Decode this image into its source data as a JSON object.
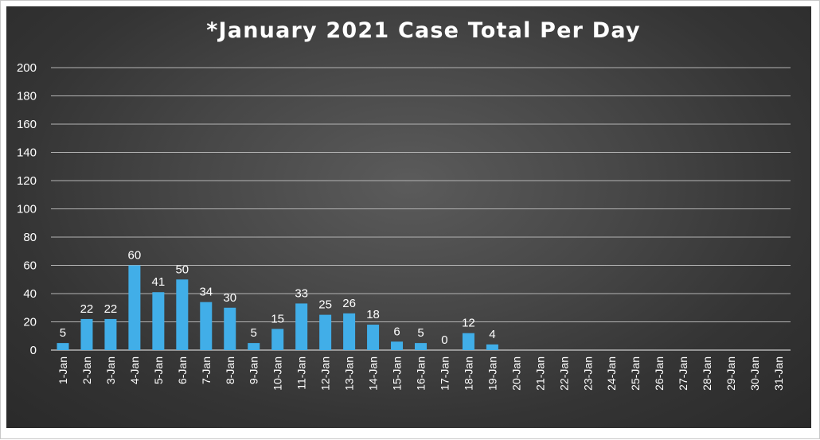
{
  "chart_data": {
    "type": "bar",
    "title": "*January 2021 Case Total Per Day",
    "xlabel": "",
    "ylabel": "",
    "ylim": [
      0,
      200
    ],
    "yticks": [
      0,
      20,
      40,
      60,
      80,
      100,
      120,
      140,
      160,
      180,
      200
    ],
    "grid": true,
    "legend": "none",
    "categories": [
      "1-Jan",
      "2-Jan",
      "3-Jan",
      "4-Jan",
      "5-Jan",
      "6-Jan",
      "7-Jan",
      "8-Jan",
      "9-Jan",
      "10-Jan",
      "11-Jan",
      "12-Jan",
      "13-Jan",
      "14-Jan",
      "15-Jan",
      "16-Jan",
      "17-Jan",
      "18-Jan",
      "19-Jan",
      "20-Jan",
      "21-Jan",
      "22-Jan",
      "23-Jan",
      "24-Jan",
      "25-Jan",
      "26-Jan",
      "27-Jan",
      "28-Jan",
      "29-Jan",
      "30-Jan",
      "31-Jan"
    ],
    "values": [
      5,
      22,
      22,
      60,
      41,
      50,
      34,
      30,
      5,
      15,
      33,
      25,
      26,
      18,
      6,
      5,
      0,
      12,
      4,
      null,
      null,
      null,
      null,
      null,
      null,
      null,
      null,
      null,
      null,
      null,
      null
    ],
    "colors": {
      "bar": "#41aee8",
      "background": "#3c3c3c",
      "grid": "#b4b4b4",
      "text": "#ffffff"
    }
  }
}
